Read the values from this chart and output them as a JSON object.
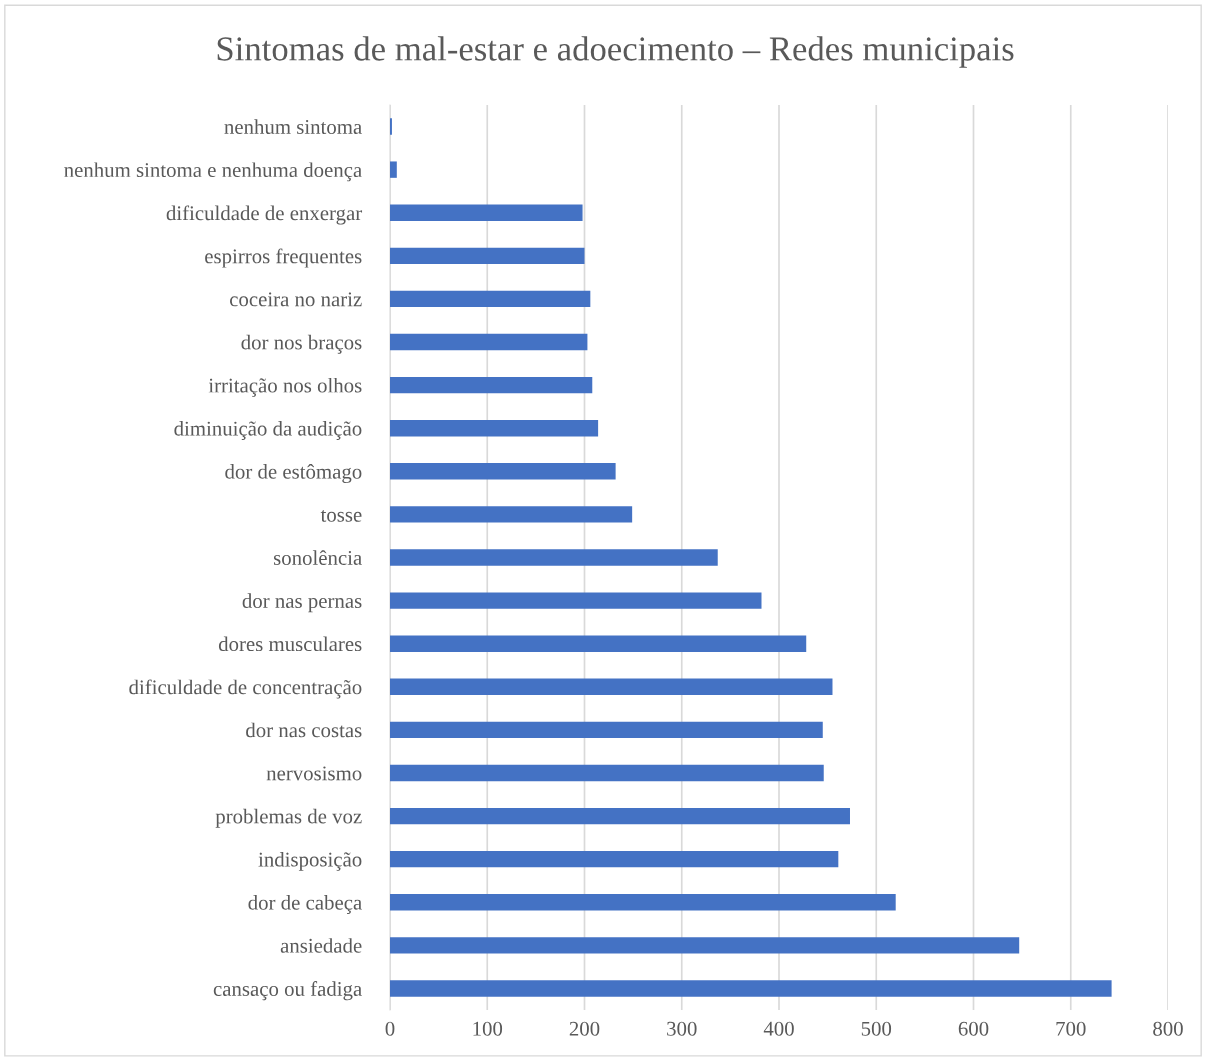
{
  "chart_data": {
    "type": "bar",
    "orientation": "horizontal",
    "title": "Sintomas de mal-estar e adoecimento – Redes municipais",
    "categories": [
      "nenhum sintoma",
      "nenhum sintoma e nenhuma doença",
      "dificuldade de enxergar",
      "espirros frequentes",
      "coceira no nariz",
      "dor nos braços",
      "irritação nos olhos",
      "diminuição da audição",
      "dor de estômago",
      "tosse",
      "sonolência",
      "dor nas pernas",
      "dores musculares",
      "dificuldade de concentração",
      "dor nas costas",
      "nervosismo",
      "problemas de voz",
      "indisposição",
      "dor de cabeça",
      "ansiedade",
      "cansaço ou fadiga"
    ],
    "values": [
      2,
      7,
      198,
      200,
      206,
      203,
      208,
      214,
      232,
      249,
      337,
      382,
      428,
      455,
      445,
      446,
      473,
      461,
      520,
      647,
      742
    ],
    "color": "#4472c4",
    "xlim": [
      0,
      800
    ],
    "xticks": [
      0,
      100,
      200,
      300,
      400,
      500,
      600,
      700,
      800
    ],
    "grid": "x"
  }
}
